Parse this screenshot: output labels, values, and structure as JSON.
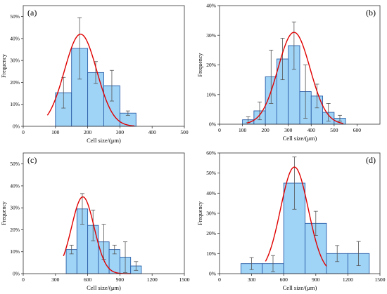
{
  "chart_data": [
    {
      "type": "bar",
      "panel_label": "(a)",
      "xlabel": "Cell size/(μm)",
      "ylabel": "Frequency",
      "xlim": [
        0,
        500
      ],
      "ylim": [
        0,
        55
      ],
      "x_ticks": [
        0,
        100,
        200,
        300,
        400,
        500
      ],
      "y_ticks": [
        "0%",
        "10%",
        "20%",
        "30%",
        "40%",
        "50%"
      ],
      "y_tick_values": [
        0,
        10,
        20,
        30,
        40,
        50
      ],
      "bin_width": 50,
      "bins": [
        {
          "x0": 100,
          "x1": 150,
          "value": 15.3,
          "err": 7
        },
        {
          "x0": 150,
          "x1": 200,
          "value": 35.5,
          "err": 14
        },
        {
          "x0": 200,
          "x1": 250,
          "value": 24.5,
          "err": 5
        },
        {
          "x0": 250,
          "x1": 300,
          "value": 18.5,
          "err": 7
        },
        {
          "x0": 300,
          "x1": 350,
          "value": 6,
          "err": 1
        }
      ],
      "fit": {
        "mean": 178,
        "sd": 50,
        "peak": 42,
        "x_range": [
          75,
          345
        ]
      },
      "grid": false
    },
    {
      "type": "bar",
      "panel_label": "(b)",
      "xlabel": "Cell size/(μm)",
      "ylabel": "Frequency",
      "xlim": [
        0,
        700
      ],
      "ylim": [
        0,
        40
      ],
      "x_ticks": [
        0,
        100,
        200,
        300,
        400,
        500,
        600
      ],
      "y_ticks": [
        "0%",
        "10%",
        "20%",
        "30%",
        "40%"
      ],
      "y_tick_values": [
        0,
        10,
        20,
        30,
        40
      ],
      "bin_width": 50,
      "bins": [
        {
          "x0": 100,
          "x1": 150,
          "value": 1.5,
          "err": 1
        },
        {
          "x0": 150,
          "x1": 200,
          "value": 4.5,
          "err": 3
        },
        {
          "x0": 200,
          "x1": 250,
          "value": 16,
          "err": 9
        },
        {
          "x0": 250,
          "x1": 300,
          "value": 22,
          "err": 7
        },
        {
          "x0": 300,
          "x1": 350,
          "value": 26.5,
          "err": 8
        },
        {
          "x0": 350,
          "x1": 400,
          "value": 11,
          "err": 9
        },
        {
          "x0": 400,
          "x1": 450,
          "value": 9.5,
          "err": 4
        },
        {
          "x0": 450,
          "x1": 500,
          "value": 4,
          "err": 3
        },
        {
          "x0": 500,
          "x1": 550,
          "value": 2,
          "err": 1
        }
      ],
      "fit": {
        "mean": 325,
        "sd": 70,
        "peak": 31,
        "x_range": [
          120,
          540
        ]
      },
      "grid": false
    },
    {
      "type": "bar",
      "panel_label": "(c)",
      "xlabel": "Cell size/(μm)",
      "ylabel": "Frequency",
      "xlim": [
        0,
        1500
      ],
      "ylim": [
        0,
        55
      ],
      "x_ticks": [
        0,
        300,
        600,
        900,
        1200,
        1500
      ],
      "y_ticks": [
        "0%",
        "10%",
        "20%",
        "30%",
        "40%",
        "50%"
      ],
      "y_tick_values": [
        0,
        10,
        20,
        30,
        40,
        50
      ],
      "bin_width": 100,
      "bins": [
        {
          "x0": 400,
          "x1": 500,
          "value": 11,
          "err": 2
        },
        {
          "x0": 500,
          "x1": 600,
          "value": 29.5,
          "err": 7
        },
        {
          "x0": 600,
          "x1": 700,
          "value": 22,
          "err": 7
        },
        {
          "x0": 700,
          "x1": 800,
          "value": 14.5,
          "err": 8
        },
        {
          "x0": 800,
          "x1": 900,
          "value": 11,
          "err": 2
        },
        {
          "x0": 900,
          "x1": 1000,
          "value": 7.5,
          "err": 7
        },
        {
          "x0": 1000,
          "x1": 1100,
          "value": 3.5,
          "err": 2
        }
      ],
      "fit": {
        "mean": 555,
        "sd": 105,
        "peak": 35,
        "x_range": [
          375,
          1000
        ]
      },
      "grid": false
    },
    {
      "type": "bar",
      "panel_label": "(d)",
      "xlabel": "Cell size/(μm)",
      "ylabel": "Frequency",
      "xlim": [
        0,
        1500
      ],
      "ylim": [
        0,
        60
      ],
      "x_ticks": [
        0,
        300,
        600,
        900,
        1200,
        1500
      ],
      "y_ticks": [
        "0%",
        "10%",
        "20%",
        "30%",
        "40%",
        "50%",
        "60%"
      ],
      "y_tick_values": [
        0,
        10,
        20,
        30,
        40,
        50,
        60
      ],
      "bin_width": 200,
      "bins": [
        {
          "x0": 200,
          "x1": 400,
          "value": 5,
          "err": 3
        },
        {
          "x0": 400,
          "x1": 600,
          "value": 5,
          "err": 4
        },
        {
          "x0": 600,
          "x1": 800,
          "value": 45,
          "err": 13
        },
        {
          "x0": 800,
          "x1": 1000,
          "value": 25,
          "err": 6
        },
        {
          "x0": 1000,
          "x1": 1200,
          "value": 10,
          "err": 4
        },
        {
          "x0": 1200,
          "x1": 1400,
          "value": 10,
          "err": 6
        }
      ],
      "fit": {
        "mean": 700,
        "sd": 130,
        "peak": 53,
        "x_range": [
          430,
          1000
        ]
      },
      "grid": false
    }
  ],
  "colors": {
    "bar_fill": "#9fd4f7",
    "bar_stroke": "#2c5fa8",
    "fit_line": "#e00000",
    "error_bar": "#555555",
    "axis": "#333333"
  }
}
